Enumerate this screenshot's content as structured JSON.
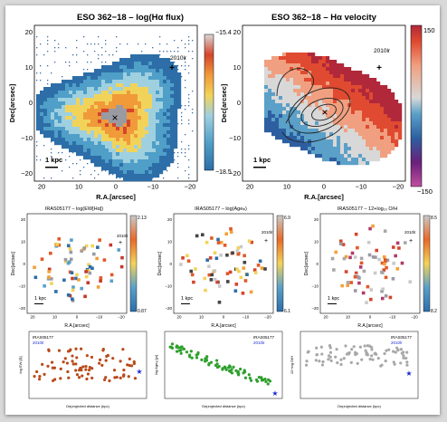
{
  "top_panels": [
    {
      "title": "ESO 362−18 – log(Hα flux)",
      "xlabel": "R.A.[arcsec]",
      "ylabel": "Dec[arcsec]",
      "xticks": [
        "20",
        "10",
        "0",
        "−10",
        "−20"
      ],
      "yticks": [
        "20",
        "10",
        "0",
        "−10",
        "−20"
      ],
      "colorbar_top": "−15.4",
      "colorbar_bottom": "−18.5",
      "scale_label": "1 kpc",
      "marker_label": "2010lr"
    },
    {
      "title": "ESO 362−18 – Hα velocity",
      "xlabel": "R.A.[arcsec]",
      "ylabel": "Dec[arcsec]",
      "xticks": [
        "20",
        "10",
        "0",
        "−10",
        "−20"
      ],
      "yticks": [
        "20",
        "10",
        "0",
        "−10",
        "−20"
      ],
      "colorbar_top": "150",
      "colorbar_bottom": "−150",
      "scale_label": "1 kpc",
      "marker_label": "2010lr"
    }
  ],
  "mid_panels": [
    {
      "title": "IRAS05177 – log(EW[Hα])",
      "xlabel": "R.A.[arcsec]",
      "ylabel": "Dec[arcsec]",
      "xticks": [
        "20",
        "10",
        "0",
        "−10",
        "−20"
      ],
      "yticks": [
        "20",
        "10",
        "0",
        "−10",
        "−20"
      ],
      "colorbar_top": "2.13",
      "colorbar_bottom": "0.87",
      "scale_label": "1 kpc",
      "marker_label": "2010lr"
    },
    {
      "title": "IRAS05177 – log(Age⁎)",
      "xlabel": "R.A.[arcsec]",
      "ylabel": "Dec[arcsec]",
      "xticks": [
        "20",
        "10",
        "0",
        "−10",
        "−20"
      ],
      "yticks": [
        "20",
        "10",
        "0",
        "−10",
        "−20"
      ],
      "colorbar_top": "6.9",
      "colorbar_bottom": "6.1",
      "scale_label": "1 kpc",
      "marker_label": "2010lr"
    },
    {
      "title": "IRAS05177 – 12+log₁₀ O/H",
      "xlabel": "R.A.[arcsec]",
      "ylabel": "Dec[arcsec]",
      "xticks": [
        "20",
        "10",
        "0",
        "−10",
        "−20"
      ],
      "yticks": [
        "20",
        "10",
        "0",
        "−10",
        "−20"
      ],
      "colorbar_top": "8.5",
      "colorbar_bottom": "8.2",
      "scale_label": "1 kpc",
      "marker_label": "2010lr"
    }
  ],
  "bottom_panels": [
    {
      "legend_line1": "IRAS05177",
      "legend_line2": "2010lr",
      "xlabel": "Deprojected distance (kpc)",
      "ylabel": "log EW [Å]",
      "point_color": "#b84a1a"
    },
    {
      "legend_line1": "IRAS05177",
      "legend_line2": "2010lr",
      "xlabel": "Deprojected distance (kpc)",
      "ylabel": "log Age⁎ [yr]",
      "point_color": "#2ea02c"
    },
    {
      "legend_line1": "IRAS05177",
      "legend_line2": "2010lr",
      "xlabel": "Deprojected distance (kpc)",
      "ylabel": "12+log O/H",
      "point_color": "#a8a8a8"
    }
  ],
  "colors": {
    "flux_map": [
      "#2d6ea8",
      "#4f9fc8",
      "#9fd0e0",
      "#f2d35a",
      "#f09a3a",
      "#d5452b",
      "#b03a6a"
    ],
    "velocity_map": [
      "#6a1f7a",
      "#2d5fa0",
      "#5aa0c8",
      "#d8d8d8",
      "#f0a080",
      "#e04a30",
      "#b0283a"
    ],
    "sn_marker": "#1a2ad0"
  }
}
